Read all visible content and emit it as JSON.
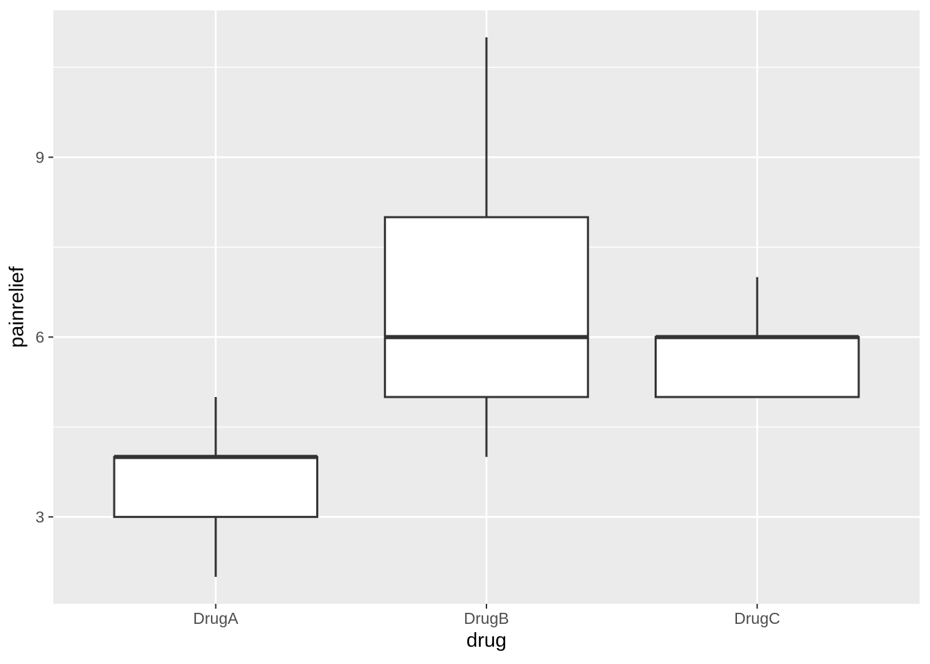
{
  "chart_data": {
    "type": "boxplot",
    "title": "",
    "xlabel": "drug",
    "ylabel": "painrelief",
    "categories": [
      "DrugA",
      "DrugB",
      "DrugC"
    ],
    "series": [
      {
        "name": "painrelief",
        "stats": [
          {
            "min": 2,
            "q1": 3,
            "median": 4,
            "q3": 4,
            "max": 5
          },
          {
            "min": 4,
            "q1": 5,
            "median": 6,
            "q3": 8,
            "max": 11
          },
          {
            "min": 5,
            "q1": 5,
            "median": 6,
            "q3": 6,
            "max": 7
          }
        ]
      }
    ],
    "x_axis": {
      "tick_labels": [
        "DrugA",
        "DrugB",
        "DrugC"
      ]
    },
    "y_axis": {
      "major_ticks": [
        3,
        6,
        9
      ],
      "minor_ticks": [
        4.5,
        7.5,
        10.5
      ],
      "range": [
        1.55,
        11.45
      ],
      "grid": true
    },
    "legend": "none",
    "colors": {
      "panel_background": "#EBEBEB",
      "gridline": "#FFFFFF",
      "box_fill": "#FFFFFF",
      "box_stroke": "#333333",
      "tick_mark": "#333333",
      "tick_label": "#4D4D4D",
      "axis_title": "#000000"
    }
  }
}
